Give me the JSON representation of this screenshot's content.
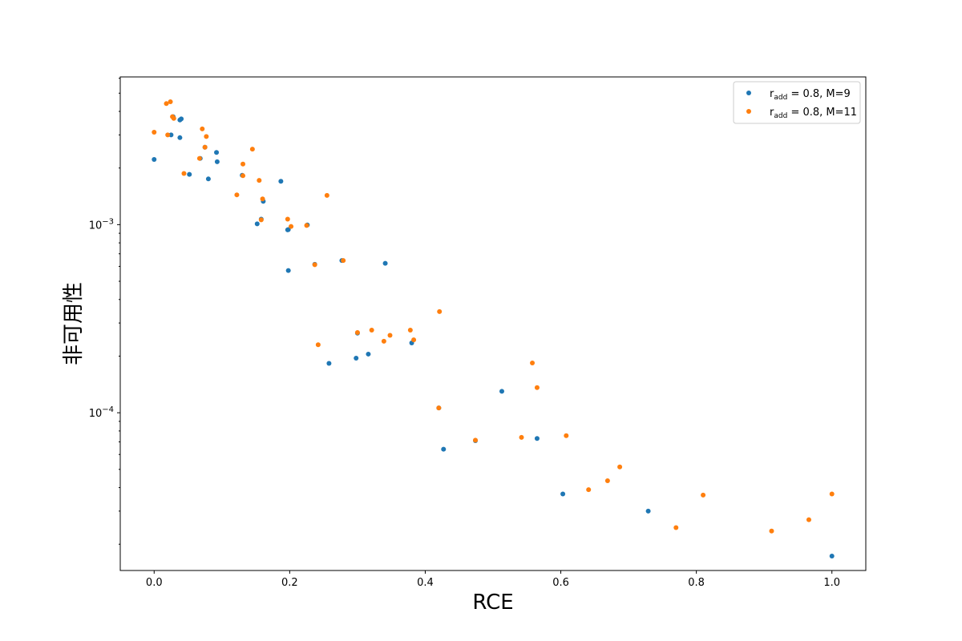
{
  "chart_data": {
    "type": "scatter",
    "xlabel": "RCE",
    "ylabel": "非可用性",
    "yscale": "log",
    "xlim": [
      -0.05,
      1.05
    ],
    "ylim": [
      1.45e-05,
      0.0061
    ],
    "xticks": [
      0.0,
      0.2,
      0.4,
      0.6,
      0.8,
      1.0
    ],
    "xtick_labels": [
      "0.0",
      "0.2",
      "0.4",
      "0.6",
      "0.8",
      "1.0"
    ],
    "yticks_major": [
      {
        "value": 0.001,
        "base": "10",
        "exp": "−3"
      },
      {
        "value": 0.0001,
        "base": "10",
        "exp": "−4"
      }
    ],
    "grid": false,
    "legend_position": "top-right",
    "series": [
      {
        "legend": {
          "pre": "r",
          "sub": "add",
          "post": " = 0.8, M=9"
        },
        "color": "#1f77b4",
        "points": [
          [
            0.0,
            0.00222
          ],
          [
            0.025,
            0.003
          ],
          [
            0.028,
            0.00375
          ],
          [
            0.038,
            0.0029
          ],
          [
            0.038,
            0.0036
          ],
          [
            0.04,
            0.00365
          ],
          [
            0.052,
            0.00185
          ],
          [
            0.068,
            0.00225
          ],
          [
            0.075,
            0.00258
          ],
          [
            0.08,
            0.00175
          ],
          [
            0.092,
            0.00242
          ],
          [
            0.093,
            0.00216
          ],
          [
            0.13,
            0.00183
          ],
          [
            0.152,
            0.00101
          ],
          [
            0.158,
            0.00107
          ],
          [
            0.161,
            0.00133
          ],
          [
            0.187,
            0.0017
          ],
          [
            0.197,
            0.000938
          ],
          [
            0.198,
            0.000942
          ],
          [
            0.198,
            0.00057
          ],
          [
            0.226,
            0.000996
          ],
          [
            0.237,
            0.000615
          ],
          [
            0.258,
            0.000183
          ],
          [
            0.277,
            0.000645
          ],
          [
            0.298,
            0.000195
          ],
          [
            0.3,
            0.000265
          ],
          [
            0.316,
            0.000205
          ],
          [
            0.341,
            0.000623
          ],
          [
            0.38,
            0.000235
          ],
          [
            0.42,
            0.000106
          ],
          [
            0.427,
            6.4e-05
          ],
          [
            0.474,
            7.1e-05
          ],
          [
            0.513,
            0.00013
          ],
          [
            0.565,
            7.3e-05
          ],
          [
            0.603,
            3.7e-05
          ],
          [
            0.729,
            3e-05
          ],
          [
            1.0,
            1.73e-05
          ]
        ]
      },
      {
        "legend": {
          "pre": "r",
          "sub": "add",
          "post": " = 0.8, M=11"
        },
        "color": "#ff7f0e",
        "points": [
          [
            0.0,
            0.0031
          ],
          [
            0.018,
            0.0044
          ],
          [
            0.02,
            0.003
          ],
          [
            0.024,
            0.0045
          ],
          [
            0.027,
            0.00375
          ],
          [
            0.029,
            0.00367
          ],
          [
            0.044,
            0.00187
          ],
          [
            0.067,
            0.00225
          ],
          [
            0.071,
            0.00323
          ],
          [
            0.075,
            0.00258
          ],
          [
            0.077,
            0.00294
          ],
          [
            0.122,
            0.00144
          ],
          [
            0.131,
            0.0021
          ],
          [
            0.131,
            0.00182
          ],
          [
            0.145,
            0.00252
          ],
          [
            0.155,
            0.00172
          ],
          [
            0.158,
            0.00106
          ],
          [
            0.16,
            0.00137
          ],
          [
            0.197,
            0.00107
          ],
          [
            0.202,
            0.000978
          ],
          [
            0.225,
            0.00099
          ],
          [
            0.237,
            0.000612
          ],
          [
            0.242,
            0.00023
          ],
          [
            0.255,
            0.00143
          ],
          [
            0.279,
            0.000645
          ],
          [
            0.3,
            0.000267
          ],
          [
            0.321,
            0.000275
          ],
          [
            0.339,
            0.00024
          ],
          [
            0.348,
            0.000258
          ],
          [
            0.378,
            0.000275
          ],
          [
            0.383,
            0.000244
          ],
          [
            0.42,
            0.000106
          ],
          [
            0.421,
            0.000345
          ],
          [
            0.474,
            7.15e-05
          ],
          [
            0.542,
            7.4e-05
          ],
          [
            0.558,
            0.000184
          ],
          [
            0.565,
            0.000136
          ],
          [
            0.608,
            7.55e-05
          ],
          [
            0.641,
            3.9e-05
          ],
          [
            0.669,
            4.35e-05
          ],
          [
            0.687,
            5.15e-05
          ],
          [
            0.77,
            2.45e-05
          ],
          [
            0.81,
            3.65e-05
          ],
          [
            0.911,
            2.35e-05
          ],
          [
            0.966,
            2.7e-05
          ],
          [
            1.0,
            3.7e-05
          ]
        ]
      }
    ]
  }
}
